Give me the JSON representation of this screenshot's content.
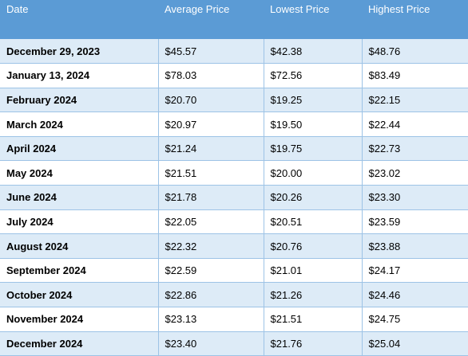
{
  "table": {
    "headers": [
      "Date",
      "Average Price",
      "Lowest Price",
      "Highest Price"
    ],
    "rows": [
      [
        "December 29, 2023",
        "$45.57",
        "$42.38",
        "$48.76"
      ],
      [
        "January 13, 2024",
        "$78.03",
        "$72.56",
        "$83.49"
      ],
      [
        "February 2024",
        "$20.70",
        "$19.25",
        "$22.15"
      ],
      [
        "March 2024",
        "$20.97",
        "$19.50",
        "$22.44"
      ],
      [
        "April 2024",
        "$21.24",
        "$19.75",
        "$22.73"
      ],
      [
        "May 2024",
        "$21.51",
        "$20.00",
        "$23.02"
      ],
      [
        "June 2024",
        "$21.78",
        "$20.26",
        "$23.30"
      ],
      [
        "July 2024",
        "$22.05",
        "$20.51",
        "$23.59"
      ],
      [
        "August 2024",
        "$22.32",
        "$20.76",
        "$23.88"
      ],
      [
        "September 2024",
        "$22.59",
        "$21.01",
        "$24.17"
      ],
      [
        "October 2024",
        "$22.86",
        "$21.26",
        "$24.46"
      ],
      [
        "November 2024",
        "$23.13",
        "$21.51",
        "$24.75"
      ],
      [
        "December 2024",
        "$23.40",
        "$21.76",
        "$25.04"
      ]
    ]
  },
  "colors": {
    "header_bg": "#5b9bd5",
    "band_row_bg": "#ddebf7",
    "border": "#9dc3e6"
  }
}
